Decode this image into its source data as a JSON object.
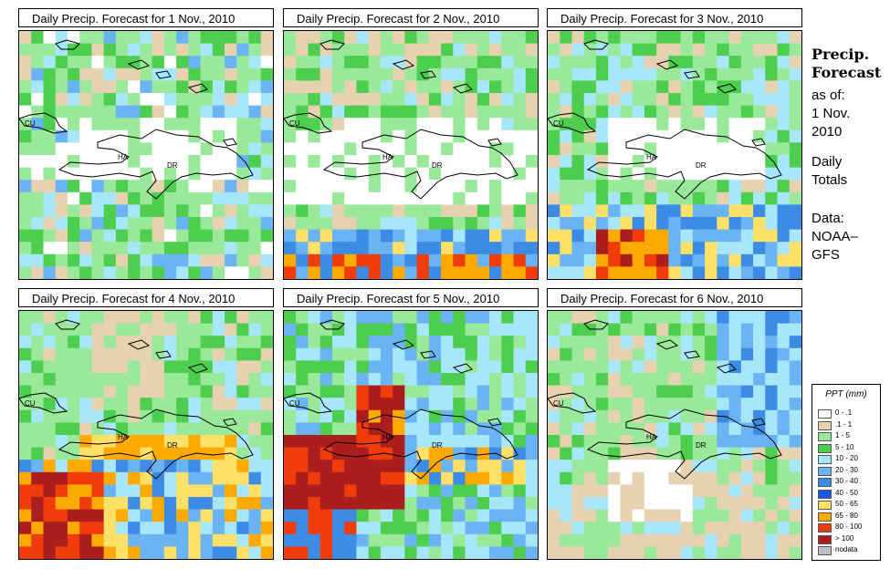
{
  "panels": [
    {
      "title": "Daily Precip. Forecast for  1 Nov., 2010",
      "variant": 1
    },
    {
      "title": "Daily Precip. Forecast for  2 Nov., 2010",
      "variant": 2
    },
    {
      "title": "Daily Precip. Forecast for  3 Nov., 2010",
      "variant": 3
    },
    {
      "title": "Daily Precip. Forecast for  4 Nov., 2010",
      "variant": 4
    },
    {
      "title": "Daily Precip. Forecast for  5 Nov., 2010",
      "variant": 5
    },
    {
      "title": "Daily Precip. Forecast for  6 Nov., 2010",
      "variant": 6
    }
  ],
  "map_labels": {
    "cuba": "CU",
    "haiti": "HA",
    "dominican_republic": "DR"
  },
  "side": {
    "title_line1": "Precip.",
    "title_line2": "Forecast",
    "asof_label": "as of:",
    "asof_line1": "1 Nov.",
    "asof_line2": "2010",
    "totals_line1": "Daily",
    "totals_line2": "Totals",
    "data_line1": "Data:",
    "data_line2": "NOAA–",
    "data_line3": "GFS"
  },
  "legend": {
    "title": "PPT (mm)",
    "items": [
      {
        "label": "0 - .1",
        "color": "#ffffff"
      },
      {
        "label": ".1 - 1",
        "color": "#e6d2b0"
      },
      {
        "label": "1 - 5",
        "color": "#9ae89a"
      },
      {
        "label": "5 - 10",
        "color": "#4ece4e"
      },
      {
        "label": "10 - 20",
        "color": "#a8e6fa"
      },
      {
        "label": "20 - 30",
        "color": "#6ab4f4"
      },
      {
        "label": "30 - 40",
        "color": "#3c8ce6"
      },
      {
        "label": "40 - 50",
        "color": "#1e58dc"
      },
      {
        "label": "50 - 65",
        "color": "#ffe068"
      },
      {
        "label": "65 - 80",
        "color": "#ffaa00"
      },
      {
        "label": "80 - 100",
        "color": "#f03c0a"
      },
      {
        "label": "> 100",
        "color": "#aa1e1e"
      },
      {
        "label": "nodata",
        "color": "#bebebe"
      }
    ]
  }
}
